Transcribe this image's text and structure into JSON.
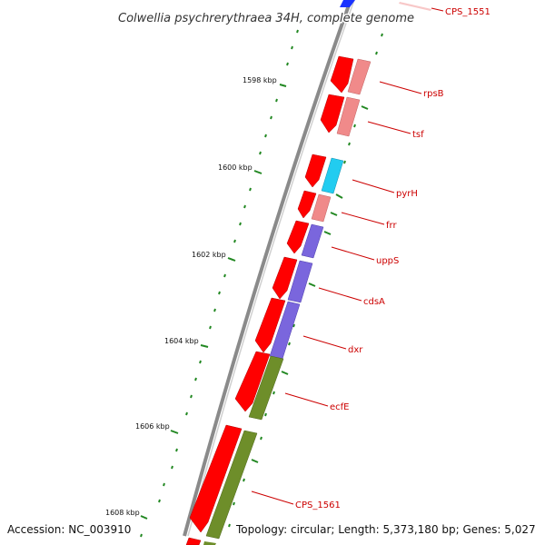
{
  "title": "Colwellia psychrerythraea 34H, complete genome",
  "footer": {
    "accession": "Accession: NC_003910",
    "topology": "Topology: circular; Length: 5,373,180 bp; Genes: 5,027"
  },
  "scale_labels": [
    "1598 kbp",
    "1600 kbp",
    "1602 kbp",
    "1604 kbp",
    "1606 kbp",
    "1608 kbp"
  ],
  "gene_labels": [
    "CPS_1551",
    "rpsB",
    "tsf",
    "pyrH",
    "frr",
    "uppS",
    "cdsA",
    "dxr",
    "ecfE",
    "CPS_1561"
  ],
  "colors": {
    "backbone": "#8a8a8a",
    "forward_strand": "#ff0000",
    "label_line": "#cc0000",
    "tick": "#228822",
    "blue_gene": "#1a33ff",
    "pink_gene": "#f08a8a",
    "cyan_gene": "#22ccf0",
    "purple_gene": "#7a66dd",
    "olive_gene": "#6e8e2a"
  }
}
